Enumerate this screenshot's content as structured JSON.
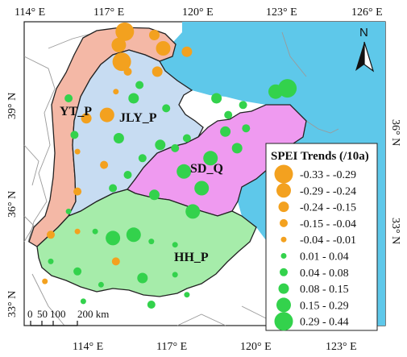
{
  "colors": {
    "sea": "#5ec8ea",
    "yt_p": "#f4b8a6",
    "jly_p": "#c7dcf2",
    "sd_q": "#ef9af0",
    "hh_p": "#a6ecaa",
    "negative": "#f3a11f",
    "positive": "#33d24c",
    "border": "#222222",
    "province_line": "#9a9a9a"
  },
  "axes": {
    "top": [
      "114° E",
      "117° E",
      "120° E",
      "123° E",
      "126° E"
    ],
    "bottom": [
      "114° E",
      "117° E",
      "120° E",
      "123° E"
    ],
    "left": [
      "39° N",
      "36° N",
      "33° N"
    ],
    "right": [
      "36° N",
      "33° N"
    ]
  },
  "regions": {
    "yt": "YT_P",
    "jly": "JLY_P",
    "sd": "SD_Q",
    "hh": "HH_P"
  },
  "north_arrow": {
    "label": "N",
    "icon": "north-arrow-icon"
  },
  "scale_bar": {
    "labels": [
      "0",
      "50",
      "100",
      "200 km"
    ]
  },
  "legend": {
    "title": "SPEI Trends (/10a)",
    "items": [
      {
        "label": "-0.33 - -0.29",
        "sign": "negative",
        "size": 5
      },
      {
        "label": "-0.29 - -0.24",
        "sign": "negative",
        "size": 4
      },
      {
        "label": "-0.24 - -0.15",
        "sign": "negative",
        "size": 3
      },
      {
        "label": "-0.15 - -0.04",
        "sign": "negative",
        "size": 2
      },
      {
        "label": "-0.04 - -0.01",
        "sign": "negative",
        "size": 1
      },
      {
        "label": "0.01 - 0.04",
        "sign": "positive",
        "size": 1
      },
      {
        "label": "0.04 - 0.08",
        "sign": "positive",
        "size": 2
      },
      {
        "label": "0.08 - 0.15",
        "sign": "positive",
        "size": 3
      },
      {
        "label": "0.15 - 0.29",
        "sign": "positive",
        "size": 4
      },
      {
        "label": "0.29 - 0.44",
        "sign": "positive",
        "size": 5
      }
    ]
  },
  "stations": [
    {
      "lon": 116.9,
      "lat": 40.5,
      "sign": "negative",
      "size": 5
    },
    {
      "lon": 117.9,
      "lat": 40.4,
      "sign": "negative",
      "size": 3
    },
    {
      "lon": 116.7,
      "lat": 40.1,
      "sign": "negative",
      "size": 4
    },
    {
      "lon": 118.2,
      "lat": 40.0,
      "sign": "negative",
      "size": 4
    },
    {
      "lon": 116.8,
      "lat": 39.6,
      "sign": "negative",
      "size": 5
    },
    {
      "lon": 119.0,
      "lat": 39.9,
      "sign": "negative",
      "size": 3
    },
    {
      "lon": 117.0,
      "lat": 39.3,
      "sign": "negative",
      "size": 2
    },
    {
      "lon": 118.0,
      "lat": 39.3,
      "sign": "negative",
      "size": 3
    },
    {
      "lon": 117.4,
      "lat": 38.9,
      "sign": "positive",
      "size": 2
    },
    {
      "lon": 116.6,
      "lat": 38.7,
      "sign": "negative",
      "size": 1
    },
    {
      "lon": 115.6,
      "lat": 37.9,
      "sign": "negative",
      "size": 3
    },
    {
      "lon": 115.0,
      "lat": 38.5,
      "sign": "positive",
      "size": 2
    },
    {
      "lon": 116.3,
      "lat": 38.0,
      "sign": "negative",
      "size": 4
    },
    {
      "lon": 117.2,
      "lat": 38.5,
      "sign": "positive",
      "size": 3
    },
    {
      "lon": 116.7,
      "lat": 37.3,
      "sign": "positive",
      "size": 3
    },
    {
      "lon": 118.1,
      "lat": 37.1,
      "sign": "positive",
      "size": 3
    },
    {
      "lon": 118.6,
      "lat": 37.0,
      "sign": "positive",
      "size": 2
    },
    {
      "lon": 118.3,
      "lat": 38.2,
      "sign": "positive",
      "size": 2
    },
    {
      "lon": 119.0,
      "lat": 37.3,
      "sign": "positive",
      "size": 2
    },
    {
      "lon": 115.2,
      "lat": 37.4,
      "sign": "positive",
      "size": 2
    },
    {
      "lon": 116.2,
      "lat": 36.5,
      "sign": "negative",
      "size": 2
    },
    {
      "lon": 115.3,
      "lat": 35.7,
      "sign": "negative",
      "size": 2
    },
    {
      "lon": 115.3,
      "lat": 36.9,
      "sign": "negative",
      "size": 1
    },
    {
      "lon": 116.5,
      "lat": 35.8,
      "sign": "positive",
      "size": 2
    },
    {
      "lon": 117.0,
      "lat": 36.2,
      "sign": "positive",
      "size": 2
    },
    {
      "lon": 117.9,
      "lat": 35.6,
      "sign": "positive",
      "size": 3
    },
    {
      "lon": 117.5,
      "lat": 36.7,
      "sign": "positive",
      "size": 2
    },
    {
      "lon": 118.9,
      "lat": 36.3,
      "sign": "positive",
      "size": 4
    },
    {
      "lon": 119.5,
      "lat": 35.8,
      "sign": "positive",
      "size": 4
    },
    {
      "lon": 119.8,
      "lat": 36.7,
      "sign": "positive",
      "size": 4
    },
    {
      "lon": 120.3,
      "lat": 37.5,
      "sign": "positive",
      "size": 3
    },
    {
      "lon": 121.0,
      "lat": 37.6,
      "sign": "positive",
      "size": 2
    },
    {
      "lon": 120.4,
      "lat": 38.0,
      "sign": "positive",
      "size": 2
    },
    {
      "lon": 120.7,
      "lat": 37.0,
      "sign": "positive",
      "size": 3
    },
    {
      "lon": 120.0,
      "lat": 38.5,
      "sign": "positive",
      "size": 3
    },
    {
      "lon": 122.0,
      "lat": 38.7,
      "sign": "positive",
      "size": 4
    },
    {
      "lon": 122.4,
      "lat": 38.8,
      "sign": "positive",
      "size": 5
    },
    {
      "lon": 120.9,
      "lat": 38.3,
      "sign": "positive",
      "size": 2
    },
    {
      "lon": 119.2,
      "lat": 35.1,
      "sign": "positive",
      "size": 4
    },
    {
      "lon": 115.0,
      "lat": 35.1,
      "sign": "positive",
      "size": 1
    },
    {
      "lon": 114.4,
      "lat": 34.4,
      "sign": "negative",
      "size": 2
    },
    {
      "lon": 115.3,
      "lat": 34.5,
      "sign": "negative",
      "size": 1
    },
    {
      "lon": 115.9,
      "lat": 34.5,
      "sign": "positive",
      "size": 1
    },
    {
      "lon": 116.5,
      "lat": 34.3,
      "sign": "positive",
      "size": 4
    },
    {
      "lon": 117.2,
      "lat": 34.4,
      "sign": "positive",
      "size": 4
    },
    {
      "lon": 117.8,
      "lat": 34.2,
      "sign": "positive",
      "size": 1
    },
    {
      "lon": 118.6,
      "lat": 34.1,
      "sign": "positive",
      "size": 1
    },
    {
      "lon": 114.4,
      "lat": 33.6,
      "sign": "positive",
      "size": 1
    },
    {
      "lon": 115.3,
      "lat": 33.3,
      "sign": "positive",
      "size": 2
    },
    {
      "lon": 116.6,
      "lat": 33.6,
      "sign": "negative",
      "size": 2
    },
    {
      "lon": 117.5,
      "lat": 33.1,
      "sign": "positive",
      "size": 3
    },
    {
      "lon": 116.1,
      "lat": 32.9,
      "sign": "positive",
      "size": 1
    },
    {
      "lon": 118.6,
      "lat": 33.2,
      "sign": "positive",
      "size": 1
    },
    {
      "lon": 114.2,
      "lat": 33.0,
      "sign": "negative",
      "size": 1
    },
    {
      "lon": 115.5,
      "lat": 32.4,
      "sign": "positive",
      "size": 1
    },
    {
      "lon": 117.8,
      "lat": 32.3,
      "sign": "positive",
      "size": 2
    },
    {
      "lon": 119.0,
      "lat": 32.6,
      "sign": "positive",
      "size": 1
    }
  ]
}
